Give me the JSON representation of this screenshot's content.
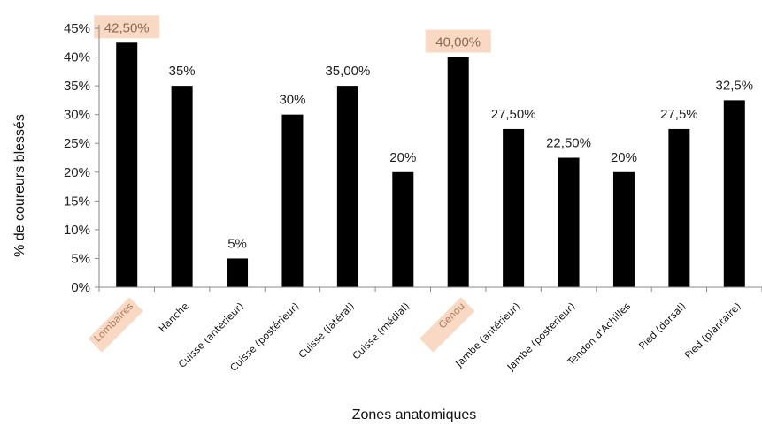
{
  "chart_data": {
    "type": "bar",
    "categories": [
      "Lombaires",
      "Hanche",
      "Cuisse (antérieur)",
      "Cuisse (postérieur)",
      "Cuisse (latéral)",
      "Cuisse (médial)",
      "Genou",
      "Jambe (antérieur)",
      "Jambe (postérieur)",
      "Tendon d'Achilles",
      "Pied (dorsal)",
      "Pied (plantaire)"
    ],
    "values": [
      42.5,
      35,
      5,
      30,
      35,
      20,
      40,
      27.5,
      22.5,
      20,
      27.5,
      32.5
    ],
    "data_labels": [
      "42,50%",
      "35%",
      "5%",
      "30%",
      "35,00%",
      "20%",
      "40,00%",
      "27,50%",
      "22,50%",
      "20%",
      "27,5%",
      "32,5%"
    ],
    "highlighted": [
      "Lombaires",
      "Genou"
    ],
    "xlabel": "Zones anatomiques",
    "ylabel": "% de coureurs blessés",
    "ylim": [
      0,
      45
    ],
    "yticks": [
      "0%",
      "5%",
      "10%",
      "15%",
      "20%",
      "25%",
      "30%",
      "35%",
      "40%",
      "45%"
    ],
    "grid": false,
    "bar_color": "#000000",
    "highlight_color": "#f9d9c4"
  }
}
